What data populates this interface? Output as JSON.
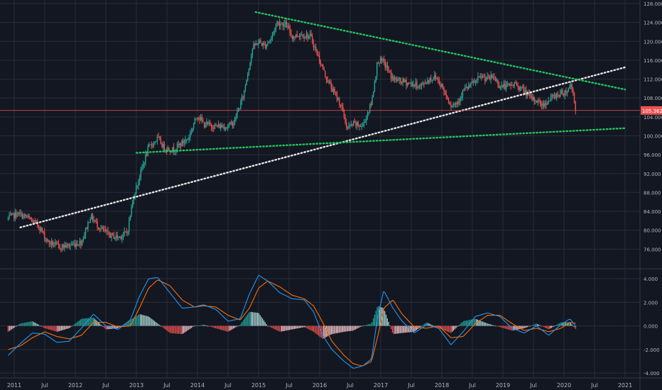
{
  "chart_data": [
    {
      "type": "candlestick",
      "title": "",
      "xlabel": "",
      "ylabel": "",
      "x_ticks": [
        "2011",
        "Jul",
        "2012",
        "Jul",
        "2013",
        "Jul",
        "2014",
        "Jul",
        "2015",
        "Jul",
        "2016",
        "Jul",
        "2017",
        "Jul",
        "2018",
        "Jul",
        "2019",
        "Jul",
        "2020",
        "Jul",
        "2021"
      ],
      "y_ticks": [
        "76.000",
        "80.000",
        "84.000",
        "88.000",
        "92.000",
        "96.000",
        "100.000",
        "104.000",
        "108.000",
        "112.000",
        "116.000",
        "120.000",
        "124.000",
        "128.000"
      ],
      "ylim": [
        73.5,
        128.0
      ],
      "grid": true,
      "last_price": "105.362",
      "price_path": [
        [
          2010.9,
          82.5
        ],
        [
          2011.05,
          83.5
        ],
        [
          2011.2,
          82.8
        ],
        [
          2011.4,
          81.0
        ],
        [
          2011.55,
          77.5
        ],
        [
          2011.75,
          76.5
        ],
        [
          2011.9,
          76.8
        ],
        [
          2012.1,
          77.5
        ],
        [
          2012.25,
          83.0
        ],
        [
          2012.4,
          80.5
        ],
        [
          2012.55,
          79.0
        ],
        [
          2012.7,
          78.5
        ],
        [
          2012.85,
          79.5
        ],
        [
          2012.95,
          87.0
        ],
        [
          2013.1,
          93.5
        ],
        [
          2013.2,
          97.5
        ],
        [
          2013.35,
          99.5
        ],
        [
          2013.45,
          97.5
        ],
        [
          2013.6,
          97.0
        ],
        [
          2013.75,
          98.5
        ],
        [
          2013.85,
          99.5
        ],
        [
          2014.0,
          104.5
        ],
        [
          2014.1,
          102.5
        ],
        [
          2014.3,
          102.0
        ],
        [
          2014.5,
          102.0
        ],
        [
          2014.6,
          103.0
        ],
        [
          2014.75,
          108.5
        ],
        [
          2014.9,
          118.5
        ],
        [
          2015.0,
          120.0
        ],
        [
          2015.1,
          119.0
        ],
        [
          2015.2,
          120.5
        ],
        [
          2015.3,
          124.0
        ],
        [
          2015.45,
          123.5
        ],
        [
          2015.55,
          121.0
        ],
        [
          2015.7,
          121.5
        ],
        [
          2015.85,
          121.0
        ],
        [
          2016.0,
          116.0
        ],
        [
          2016.1,
          112.5
        ],
        [
          2016.2,
          110.0
        ],
        [
          2016.35,
          106.5
        ],
        [
          2016.45,
          101.5
        ],
        [
          2016.55,
          102.5
        ],
        [
          2016.7,
          102.0
        ],
        [
          2016.85,
          107.0
        ],
        [
          2016.95,
          116.0
        ],
        [
          2017.05,
          115.5
        ],
        [
          2017.2,
          112.0
        ],
        [
          2017.35,
          111.5
        ],
        [
          2017.5,
          111.0
        ],
        [
          2017.65,
          110.5
        ],
        [
          2017.8,
          112.0
        ],
        [
          2017.9,
          112.5
        ],
        [
          2018.0,
          110.5
        ],
        [
          2018.15,
          106.5
        ],
        [
          2018.25,
          107.0
        ],
        [
          2018.35,
          109.5
        ],
        [
          2018.45,
          110.5
        ],
        [
          2018.55,
          111.5
        ],
        [
          2018.65,
          112.5
        ],
        [
          2018.75,
          112.0
        ],
        [
          2018.85,
          112.5
        ],
        [
          2018.95,
          110.5
        ],
        [
          2019.1,
          110.5
        ],
        [
          2019.2,
          111.0
        ],
        [
          2019.35,
          109.5
        ],
        [
          2019.45,
          108.0
        ],
        [
          2019.55,
          107.5
        ],
        [
          2019.65,
          106.5
        ],
        [
          2019.75,
          107.5
        ],
        [
          2019.85,
          108.5
        ],
        [
          2019.95,
          109.0
        ],
        [
          2020.05,
          109.5
        ],
        [
          2020.12,
          111.0
        ],
        [
          2020.2,
          105.36
        ]
      ],
      "trendlines": [
        {
          "style": "white-dotted",
          "from": [
            2011.1,
            80.6
          ],
          "to": [
            2021.0,
            114.5
          ]
        },
        {
          "style": "green-dotted",
          "from": [
            2013.0,
            96.4
          ],
          "to": [
            2021.0,
            101.6
          ]
        },
        {
          "style": "green-dotted",
          "from": [
            2014.95,
            126.2
          ],
          "to": [
            2021.0,
            109.8
          ]
        }
      ],
      "colors": {
        "up": "#26a69a",
        "down": "#ef5350",
        "background": "#131722",
        "grid": "#2a2e39",
        "macd": "#2196f3",
        "signal": "#ff6d00",
        "trend_white": "#e6e6e6",
        "trend_green": "#22c55e"
      }
    },
    {
      "type": "histogram",
      "title": "",
      "y_ticks": [
        "4.000",
        "2.000",
        "0.000",
        "-2.000",
        "-4.000"
      ],
      "ylim": [
        -4.35,
        4.6
      ],
      "series": [
        {
          "values": [
            [
              2010.9,
              -2.5
            ],
            [
              2011.1,
              -1.5
            ],
            [
              2011.3,
              -0.6
            ],
            [
              2011.5,
              -0.7
            ],
            [
              2011.7,
              -1.4
            ],
            [
              2011.9,
              -1.3
            ],
            [
              2012.1,
              -0.2
            ],
            [
              2012.3,
              1.0
            ],
            [
              2012.5,
              0.0
            ],
            [
              2012.7,
              -0.3
            ],
            [
              2012.9,
              0.5
            ],
            [
              2013.05,
              2.5
            ],
            [
              2013.2,
              4.0
            ],
            [
              2013.35,
              4.1
            ],
            [
              2013.55,
              2.8
            ],
            [
              2013.75,
              1.5
            ],
            [
              2013.95,
              1.6
            ],
            [
              2014.1,
              1.8
            ],
            [
              2014.3,
              1.4
            ],
            [
              2014.5,
              0.4
            ],
            [
              2014.7,
              0.6
            ],
            [
              2014.85,
              2.7
            ],
            [
              2015.0,
              4.3
            ],
            [
              2015.15,
              3.8
            ],
            [
              2015.35,
              2.8
            ],
            [
              2015.55,
              2.3
            ],
            [
              2015.75,
              2.2
            ],
            [
              2015.9,
              1.2
            ],
            [
              2016.05,
              -0.8
            ],
            [
              2016.2,
              -2.0
            ],
            [
              2016.4,
              -3.0
            ],
            [
              2016.55,
              -3.6
            ],
            [
              2016.7,
              -3.4
            ],
            [
              2016.85,
              -2.8
            ],
            [
              2016.95,
              0.8
            ],
            [
              2017.05,
              3.0
            ],
            [
              2017.2,
              1.5
            ],
            [
              2017.35,
              0.4
            ],
            [
              2017.55,
              -0.6
            ],
            [
              2017.75,
              0.1
            ],
            [
              2017.95,
              -0.2
            ],
            [
              2018.15,
              -1.6
            ],
            [
              2018.35,
              -0.5
            ],
            [
              2018.55,
              0.8
            ],
            [
              2018.75,
              1.1
            ],
            [
              2018.95,
              0.8
            ],
            [
              2019.15,
              -0.2
            ],
            [
              2019.35,
              -0.6
            ],
            [
              2019.55,
              0.0
            ],
            [
              2019.75,
              -0.8
            ],
            [
              2019.95,
              0.1
            ],
            [
              2020.1,
              0.6
            ],
            [
              2020.2,
              -0.1
            ]
          ]
        },
        {
          "values": [
            [
              2010.9,
              -2.0
            ],
            [
              2011.1,
              -1.7
            ],
            [
              2011.3,
              -1.0
            ],
            [
              2011.5,
              -0.5
            ],
            [
              2011.7,
              -0.9
            ],
            [
              2011.9,
              -1.1
            ],
            [
              2012.1,
              -0.8
            ],
            [
              2012.3,
              0.3
            ],
            [
              2012.5,
              0.3
            ],
            [
              2012.7,
              -0.1
            ],
            [
              2012.9,
              0.0
            ],
            [
              2013.05,
              1.5
            ],
            [
              2013.2,
              3.2
            ],
            [
              2013.35,
              3.9
            ],
            [
              2013.55,
              3.4
            ],
            [
              2013.75,
              2.2
            ],
            [
              2013.95,
              1.6
            ],
            [
              2014.1,
              1.7
            ],
            [
              2014.3,
              1.6
            ],
            [
              2014.5,
              0.9
            ],
            [
              2014.7,
              0.5
            ],
            [
              2014.85,
              1.5
            ],
            [
              2015.0,
              3.2
            ],
            [
              2015.15,
              3.8
            ],
            [
              2015.35,
              3.3
            ],
            [
              2015.55,
              2.6
            ],
            [
              2015.75,
              2.3
            ],
            [
              2015.9,
              1.7
            ],
            [
              2016.05,
              0.3
            ],
            [
              2016.2,
              -1.3
            ],
            [
              2016.4,
              -2.5
            ],
            [
              2016.55,
              -3.2
            ],
            [
              2016.7,
              -3.4
            ],
            [
              2016.85,
              -3.0
            ],
            [
              2016.95,
              -0.9
            ],
            [
              2017.05,
              1.5
            ],
            [
              2017.2,
              2.2
            ],
            [
              2017.35,
              1.0
            ],
            [
              2017.55,
              -0.1
            ],
            [
              2017.75,
              -0.2
            ],
            [
              2017.95,
              0.0
            ],
            [
              2018.15,
              -1.0
            ],
            [
              2018.35,
              -0.9
            ],
            [
              2018.55,
              0.2
            ],
            [
              2018.75,
              0.9
            ],
            [
              2018.95,
              0.9
            ],
            [
              2019.15,
              0.2
            ],
            [
              2019.35,
              -0.4
            ],
            [
              2019.55,
              -0.2
            ],
            [
              2019.75,
              -0.5
            ],
            [
              2019.95,
              -0.2
            ],
            [
              2020.1,
              0.3
            ],
            [
              2020.2,
              0.2
            ]
          ]
        }
      ]
    }
  ]
}
